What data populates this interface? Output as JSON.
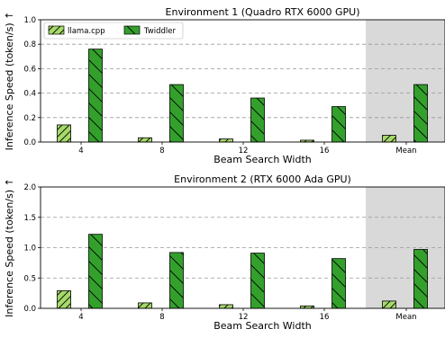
{
  "colors": {
    "llama": "#a6d96a",
    "twiddler": "#33a02c",
    "mean_shade": "#d9d9d9",
    "edge": "#000000",
    "grid": "#999999"
  },
  "legend": {
    "entries": [
      "llama.cpp",
      "Twiddler"
    ],
    "placement": "top-left"
  },
  "chart_data": [
    {
      "type": "bar",
      "title": "Environment 1 (Quadro RTX 6000 GPU)",
      "xlabel": "Beam Search Width",
      "ylabel": "Inference Speed (token/s) ↑",
      "categories": [
        "4",
        "8",
        "12",
        "16",
        "Mean"
      ],
      "ylim": [
        0,
        1.0
      ],
      "yticks": [
        "0.0",
        "0.2",
        "0.4",
        "0.6",
        "0.8",
        "1.0"
      ],
      "grid": "horizontal dashed",
      "shaded_category": "Mean",
      "series": [
        {
          "name": "llama.cpp",
          "values": [
            0.14,
            0.035,
            0.025,
            0.015,
            0.055
          ]
        },
        {
          "name": "Twiddler",
          "values": [
            0.76,
            0.47,
            0.36,
            0.29,
            0.47
          ]
        }
      ]
    },
    {
      "type": "bar",
      "title": "Environment 2 (RTX 6000 Ada GPU)",
      "xlabel": "Beam Search Width",
      "ylabel": "Inference Speed (token/s) ↑",
      "categories": [
        "4",
        "8",
        "12",
        "16",
        "Mean"
      ],
      "ylim": [
        0,
        2.0
      ],
      "yticks": [
        "0.0",
        "0.5",
        "1.0",
        "1.5",
        "2.0"
      ],
      "grid": "horizontal dashed",
      "shaded_category": "Mean",
      "series": [
        {
          "name": "llama.cpp",
          "values": [
            0.29,
            0.09,
            0.06,
            0.04,
            0.12
          ]
        },
        {
          "name": "Twiddler",
          "values": [
            1.22,
            0.92,
            0.91,
            0.82,
            0.97
          ]
        }
      ]
    }
  ]
}
